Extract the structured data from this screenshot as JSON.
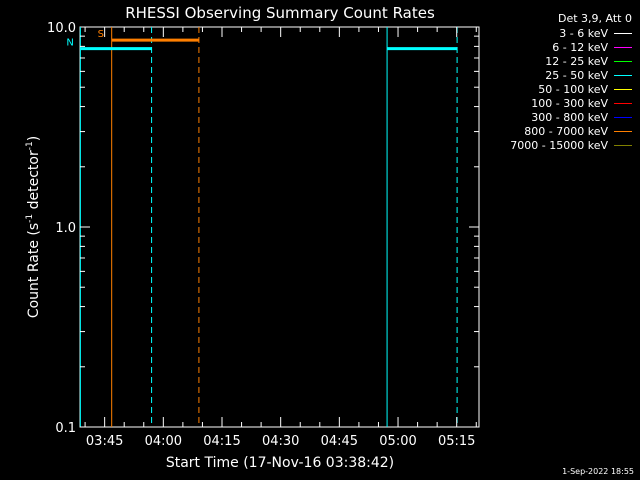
{
  "chart_data": {
    "type": "line",
    "title": "RHESSI Observing Summary Count Rates",
    "xlabel": "Start Time (17-Nov-16 03:38:42)",
    "ylabel_main": "Count Rate (s",
    "ylabel_sup1": "-1",
    "ylabel_mid": " detector",
    "ylabel_sup2": "-1",
    "ylabel_end": ")",
    "y_scale": "log",
    "ylim": [
      0.1,
      10.0
    ],
    "y_ticks": [
      {
        "value": 0.1,
        "label": "0.1"
      },
      {
        "value": 1.0,
        "label": "1.0"
      },
      {
        "value": 10.0,
        "label": "10.0"
      }
    ],
    "xlim_minutes": [
      0,
      102
    ],
    "x_ticks": [
      {
        "minutes": 6.3,
        "label": "03:45"
      },
      {
        "minutes": 21.3,
        "label": "04:00"
      },
      {
        "minutes": 36.3,
        "label": "04:15"
      },
      {
        "minutes": 51.3,
        "label": "04:30"
      },
      {
        "minutes": 66.3,
        "label": "04:45"
      },
      {
        "minutes": 81.3,
        "label": "05:00"
      },
      {
        "minutes": 96.3,
        "label": "05:15"
      }
    ],
    "vertical_markers": [
      {
        "minutes": 0.1,
        "color": "#00ffff",
        "style": "solid"
      },
      {
        "minutes": 8.1,
        "color": "#ff7f00",
        "style": "solid"
      },
      {
        "minutes": 18.3,
        "color": "#00ffff",
        "style": "dashed"
      },
      {
        "minutes": 30.4,
        "color": "#ff7f00",
        "style": "dashed"
      },
      {
        "minutes": 78.5,
        "color": "#00ffff",
        "style": "solid"
      },
      {
        "minutes": 96.4,
        "color": "#00ffff",
        "style": "dashed"
      }
    ],
    "flag_bars": [
      {
        "label": "S",
        "color": "#ff7f00",
        "x_start": 8.1,
        "x_end": 30.4,
        "y": 8.6
      },
      {
        "label": "N",
        "color": "#00ffff",
        "x_start": 0.1,
        "x_end": 18.3,
        "y": 7.8
      },
      {
        "label": "",
        "color": "#00ffff",
        "x_start": 78.5,
        "x_end": 96.4,
        "y": 7.8
      }
    ],
    "legend": {
      "title": "Det 3,9, Att 0",
      "entries": [
        {
          "label": "3 - 6 keV",
          "color": "#ffffff"
        },
        {
          "label": "6 - 12 keV",
          "color": "#ff00ff"
        },
        {
          "label": "12 - 25 keV",
          "color": "#00ff00"
        },
        {
          "label": "25 - 50 keV",
          "color": "#00ffff"
        },
        {
          "label": "50 - 100 keV",
          "color": "#ffff00"
        },
        {
          "label": "100 - 300 keV",
          "color": "#ff0000"
        },
        {
          "label": "300 - 800 keV",
          "color": "#0000ff"
        },
        {
          "label": "800 - 7000 keV",
          "color": "#ff7f00"
        },
        {
          "label": "7000 - 15000 keV",
          "color": "#808000"
        }
      ]
    }
  },
  "timestamp": "1-Sep-2022 18:55"
}
